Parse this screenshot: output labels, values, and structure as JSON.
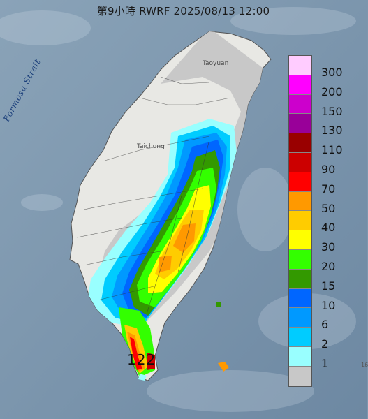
{
  "title": "第9小時  RWRF 2025/08/13 12:00",
  "places": {
    "taoyuan": "Taoyuan",
    "taichung": "Taichung"
  },
  "strait_label": "Formosa Strait",
  "max_value_label": "122",
  "edge_label": "16",
  "legend": {
    "items": [
      {
        "label": "300",
        "color": "#ffccff"
      },
      {
        "label": "200",
        "color": "#ff00ff"
      },
      {
        "label": "150",
        "color": "#cc00cc"
      },
      {
        "label": "130",
        "color": "#990099"
      },
      {
        "label": "110",
        "color": "#990000"
      },
      {
        "label": "90",
        "color": "#cc0000"
      },
      {
        "label": "70",
        "color": "#ff0000"
      },
      {
        "label": "50",
        "color": "#ff9900"
      },
      {
        "label": "40",
        "color": "#ffcc00"
      },
      {
        "label": "30",
        "color": "#ffff00"
      },
      {
        "label": "20",
        "color": "#33ff00"
      },
      {
        "label": "15",
        "color": "#339900"
      },
      {
        "label": "10",
        "color": "#0066ff"
      },
      {
        "label": "6",
        "color": "#0099ff"
      },
      {
        "label": "2",
        "color": "#00ccff"
      },
      {
        "label": "1",
        "color": "#99ffff"
      },
      {
        "label": "",
        "color": "#c8c8c8"
      }
    ]
  },
  "colors": {
    "sea": "#7d96ad",
    "land_dry": "#e8e8e4",
    "no_rain_gray": "#c8c8c8"
  }
}
